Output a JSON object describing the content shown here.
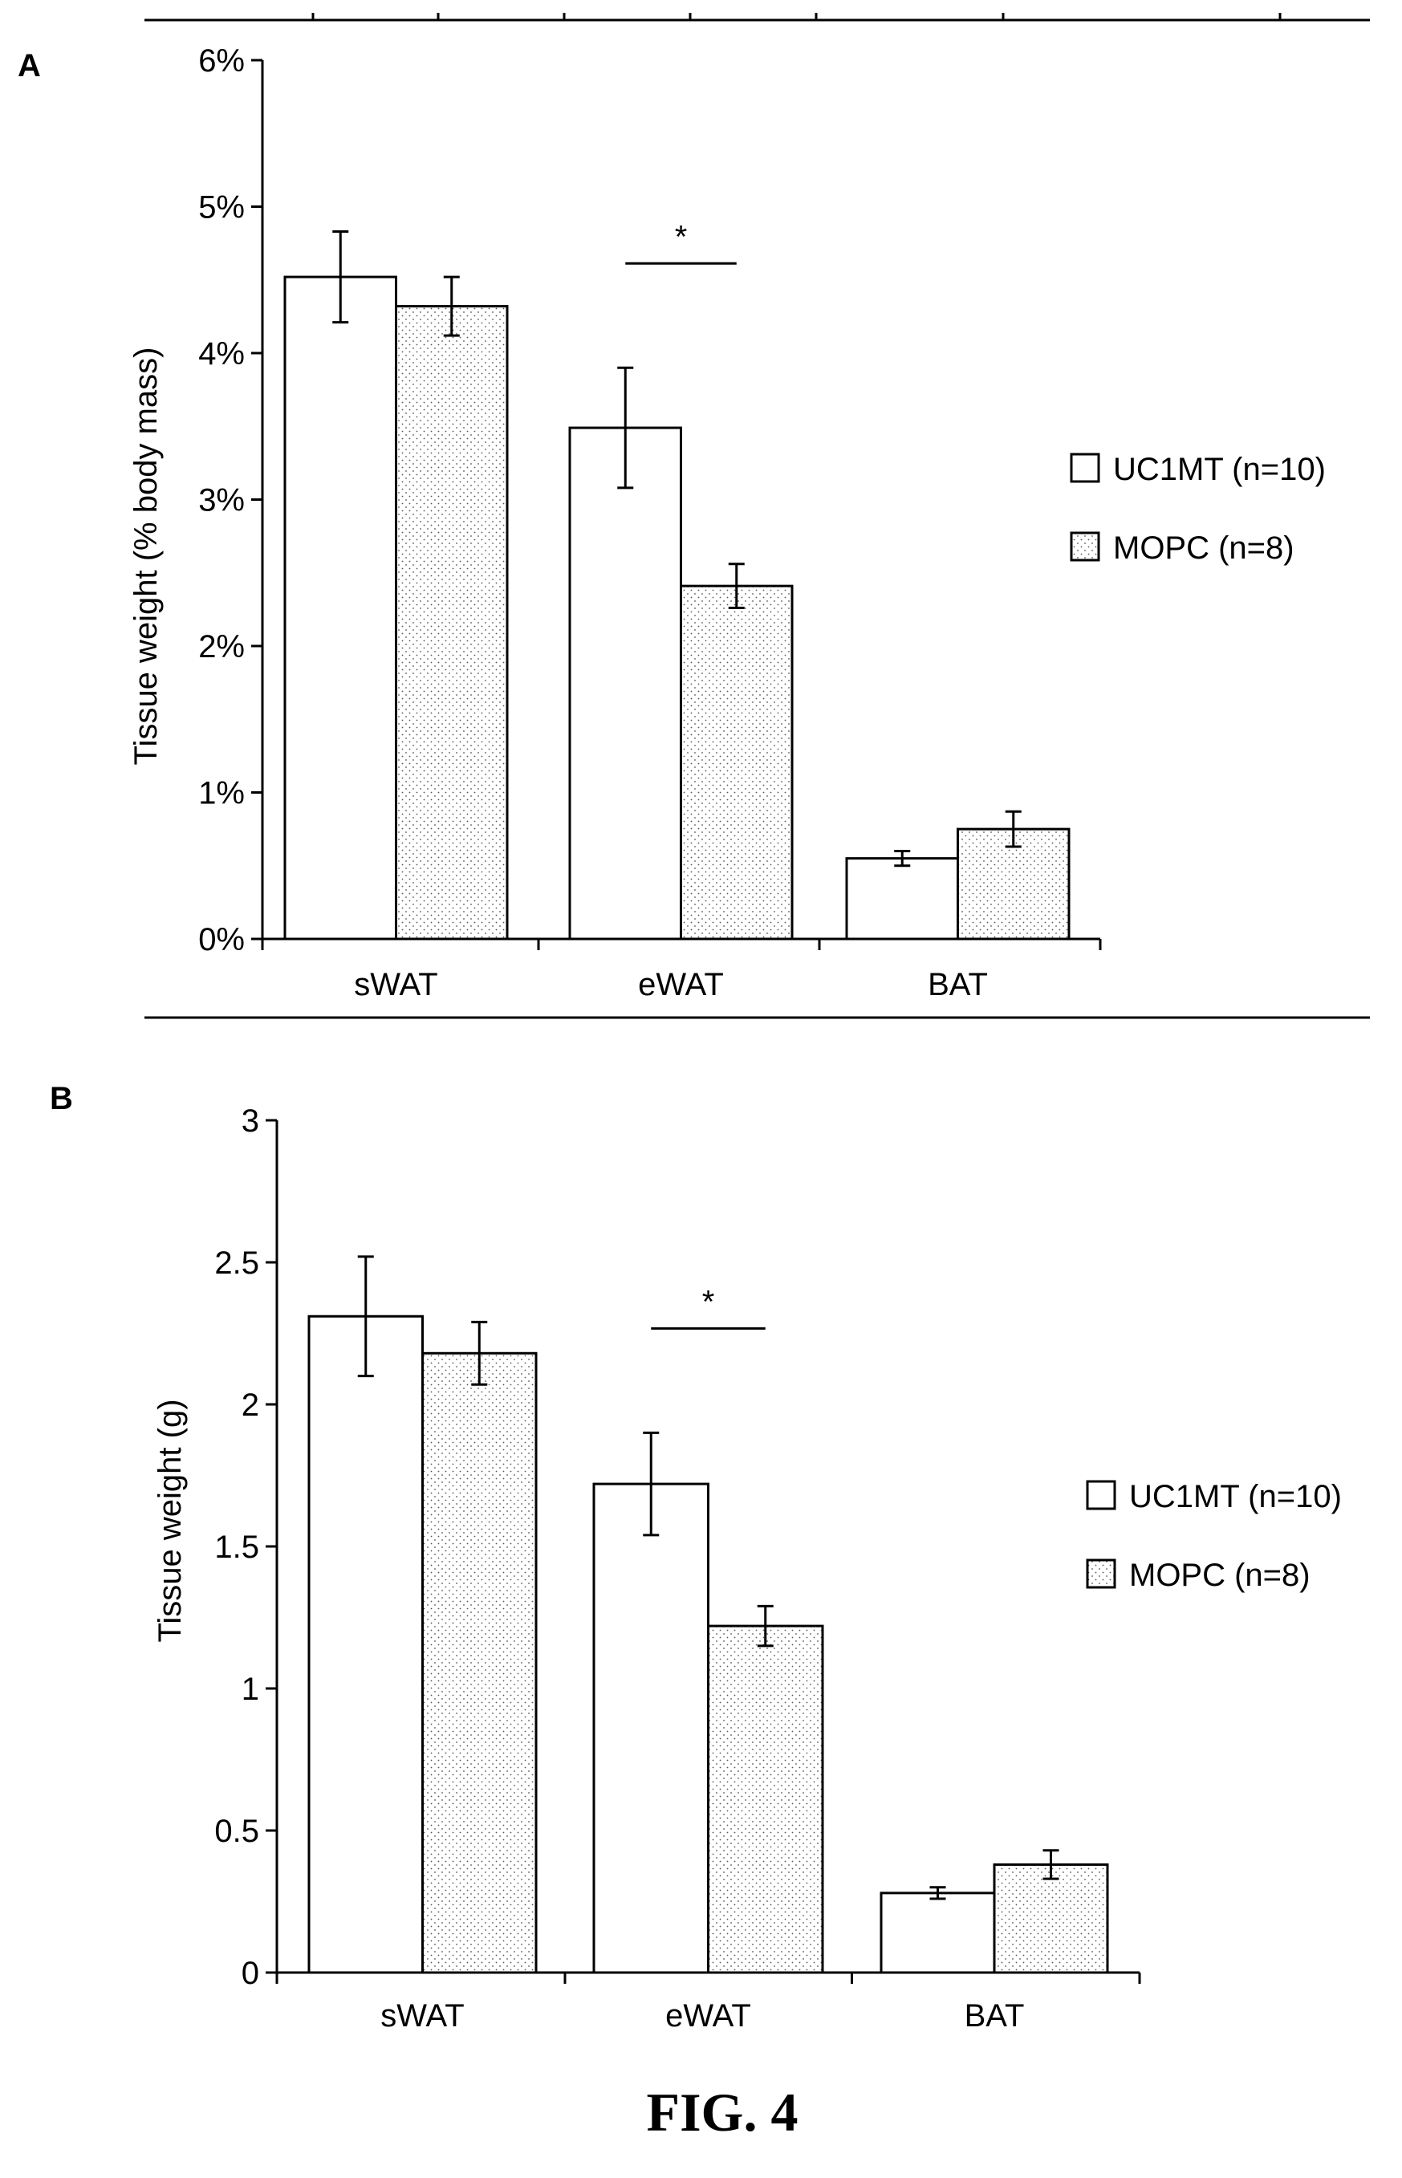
{
  "figure_caption": "FIG. 4",
  "chart_data": [
    {
      "panel_label": "A",
      "type": "bar",
      "title": "",
      "xlabel": "",
      "ylabel": "Tissue weight (% body mass)",
      "ylim": [
        0,
        0.06
      ],
      "yticks": [
        0,
        0.01,
        0.02,
        0.03,
        0.04,
        0.05,
        0.06
      ],
      "ytick_labels": [
        "0%",
        "1%",
        "2%",
        "3%",
        "4%",
        "5%",
        "6%"
      ],
      "categories": [
        "sWAT",
        "eWAT",
        "BAT"
      ],
      "series": [
        {
          "name": "UC1MT (n=10)",
          "fill": "white",
          "values": [
            0.0452,
            0.0349,
            0.0055
          ],
          "errors": [
            0.0031,
            0.0041,
            0.0005
          ]
        },
        {
          "name": "MOPC (n=8)",
          "fill": "stipple",
          "values": [
            0.0432,
            0.0241,
            0.0075
          ],
          "errors": [
            0.002,
            0.0015,
            0.0012
          ]
        }
      ],
      "significance": [
        {
          "category": "eWAT",
          "label": "*"
        }
      ],
      "legend_position": "right",
      "grid": false
    },
    {
      "panel_label": "B",
      "type": "bar",
      "title": "",
      "xlabel": "",
      "ylabel": "Tissue weight (g)",
      "ylim": [
        0,
        3
      ],
      "yticks": [
        0,
        0.5,
        1,
        1.5,
        2,
        2.5,
        3
      ],
      "ytick_labels": [
        "0",
        "0.5",
        "1",
        "1.5",
        "2",
        "2.5",
        "3"
      ],
      "categories": [
        "sWAT",
        "eWAT",
        "BAT"
      ],
      "series": [
        {
          "name": "UC1MT (n=10)",
          "fill": "white",
          "values": [
            2.31,
            1.72,
            0.28
          ],
          "errors": [
            0.21,
            0.18,
            0.02
          ]
        },
        {
          "name": "MOPC (n=8)",
          "fill": "stipple",
          "values": [
            2.18,
            1.22,
            0.38
          ],
          "errors": [
            0.11,
            0.07,
            0.05
          ]
        }
      ],
      "significance": [
        {
          "category": "eWAT",
          "label": "*"
        }
      ],
      "legend_position": "right",
      "grid": false
    }
  ]
}
